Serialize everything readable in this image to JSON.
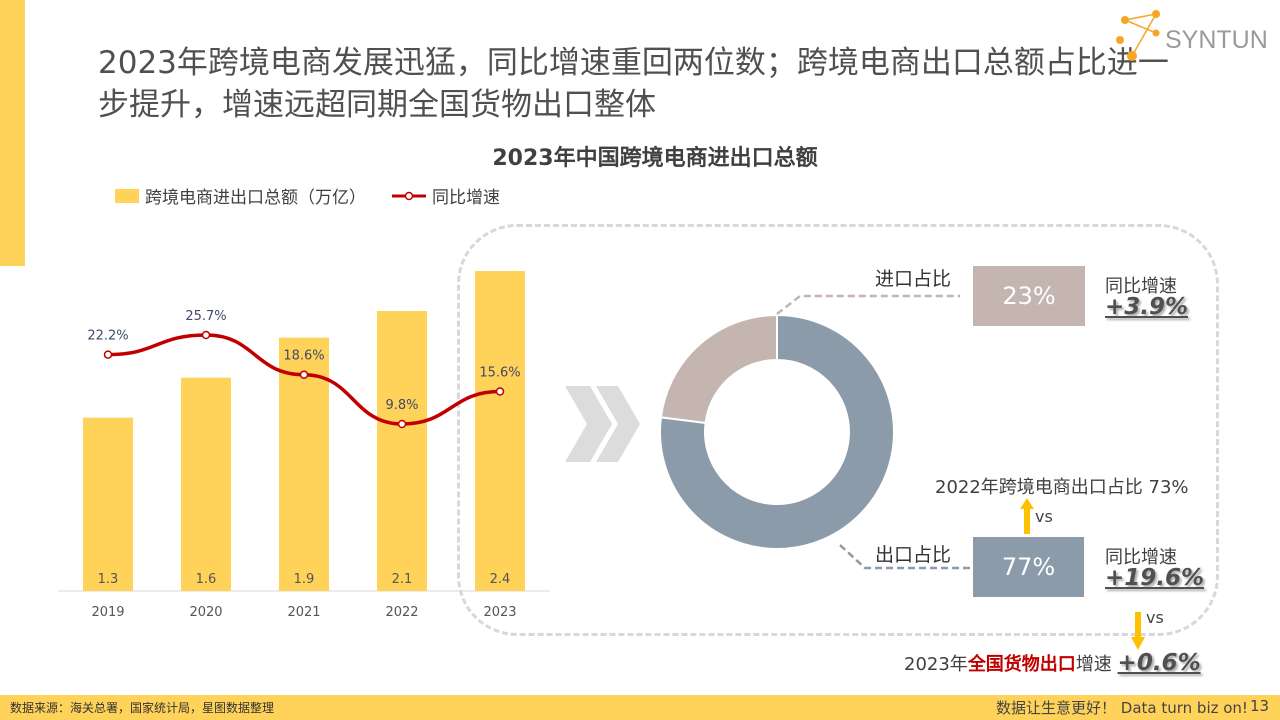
{
  "title": "2023年跨境电商发展迅猛，同比增速重回两位数；跨境电商出口总额占比进一步提升，增速远超同期全国货物出口整体",
  "logo": "SYNTUN",
  "chart_data": {
    "type": "bar",
    "title": "2023年中国跨境电商进出口总额",
    "categories": [
      "2019",
      "2020",
      "2021",
      "2022",
      "2023"
    ],
    "series": [
      {
        "name": "跨境电商进出口总额（万亿）",
        "type": "bar",
        "values": [
          1.3,
          1.6,
          1.9,
          2.1,
          2.4
        ],
        "labels": [
          "1.3",
          "1.6",
          "1.9",
          "2.1",
          "2.4"
        ]
      },
      {
        "name": "同比增速",
        "type": "line",
        "values": [
          22.2,
          25.7,
          18.6,
          9.8,
          15.6
        ],
        "labels": [
          "22.2%",
          "25.7%",
          "18.6%",
          "9.8%",
          "15.6%"
        ]
      }
    ],
    "ylim": [
      0,
      2.4
    ],
    "y2lim": [
      9.8,
      25.7
    ],
    "colors": {
      "bar": "#FFD25A",
      "line": "#C00000"
    }
  },
  "donut": {
    "type": "pie",
    "slices": [
      {
        "name": "进口占比",
        "value": 23,
        "label": "23%",
        "color": "#C4B5B1",
        "growth_label": "同比增速",
        "growth": "+3.9%"
      },
      {
        "name": "出口占比",
        "value": 77,
        "label": "77%",
        "color": "#8C9BAA",
        "growth_label": "同比增速",
        "growth": "+19.6%"
      }
    ]
  },
  "compare_2022": "2022年跨境电商出口占比 73%",
  "vs": "vs",
  "national": {
    "prefix": "2023年",
    "highlight": "全国货物出口",
    "suffix": "增速",
    "value": "+0.6%"
  },
  "footer": {
    "source": "数据来源：海关总署，国家统计局，星图数据整理",
    "slogan": "数据让生意更好！ Data turn biz on!",
    "page": "13"
  }
}
